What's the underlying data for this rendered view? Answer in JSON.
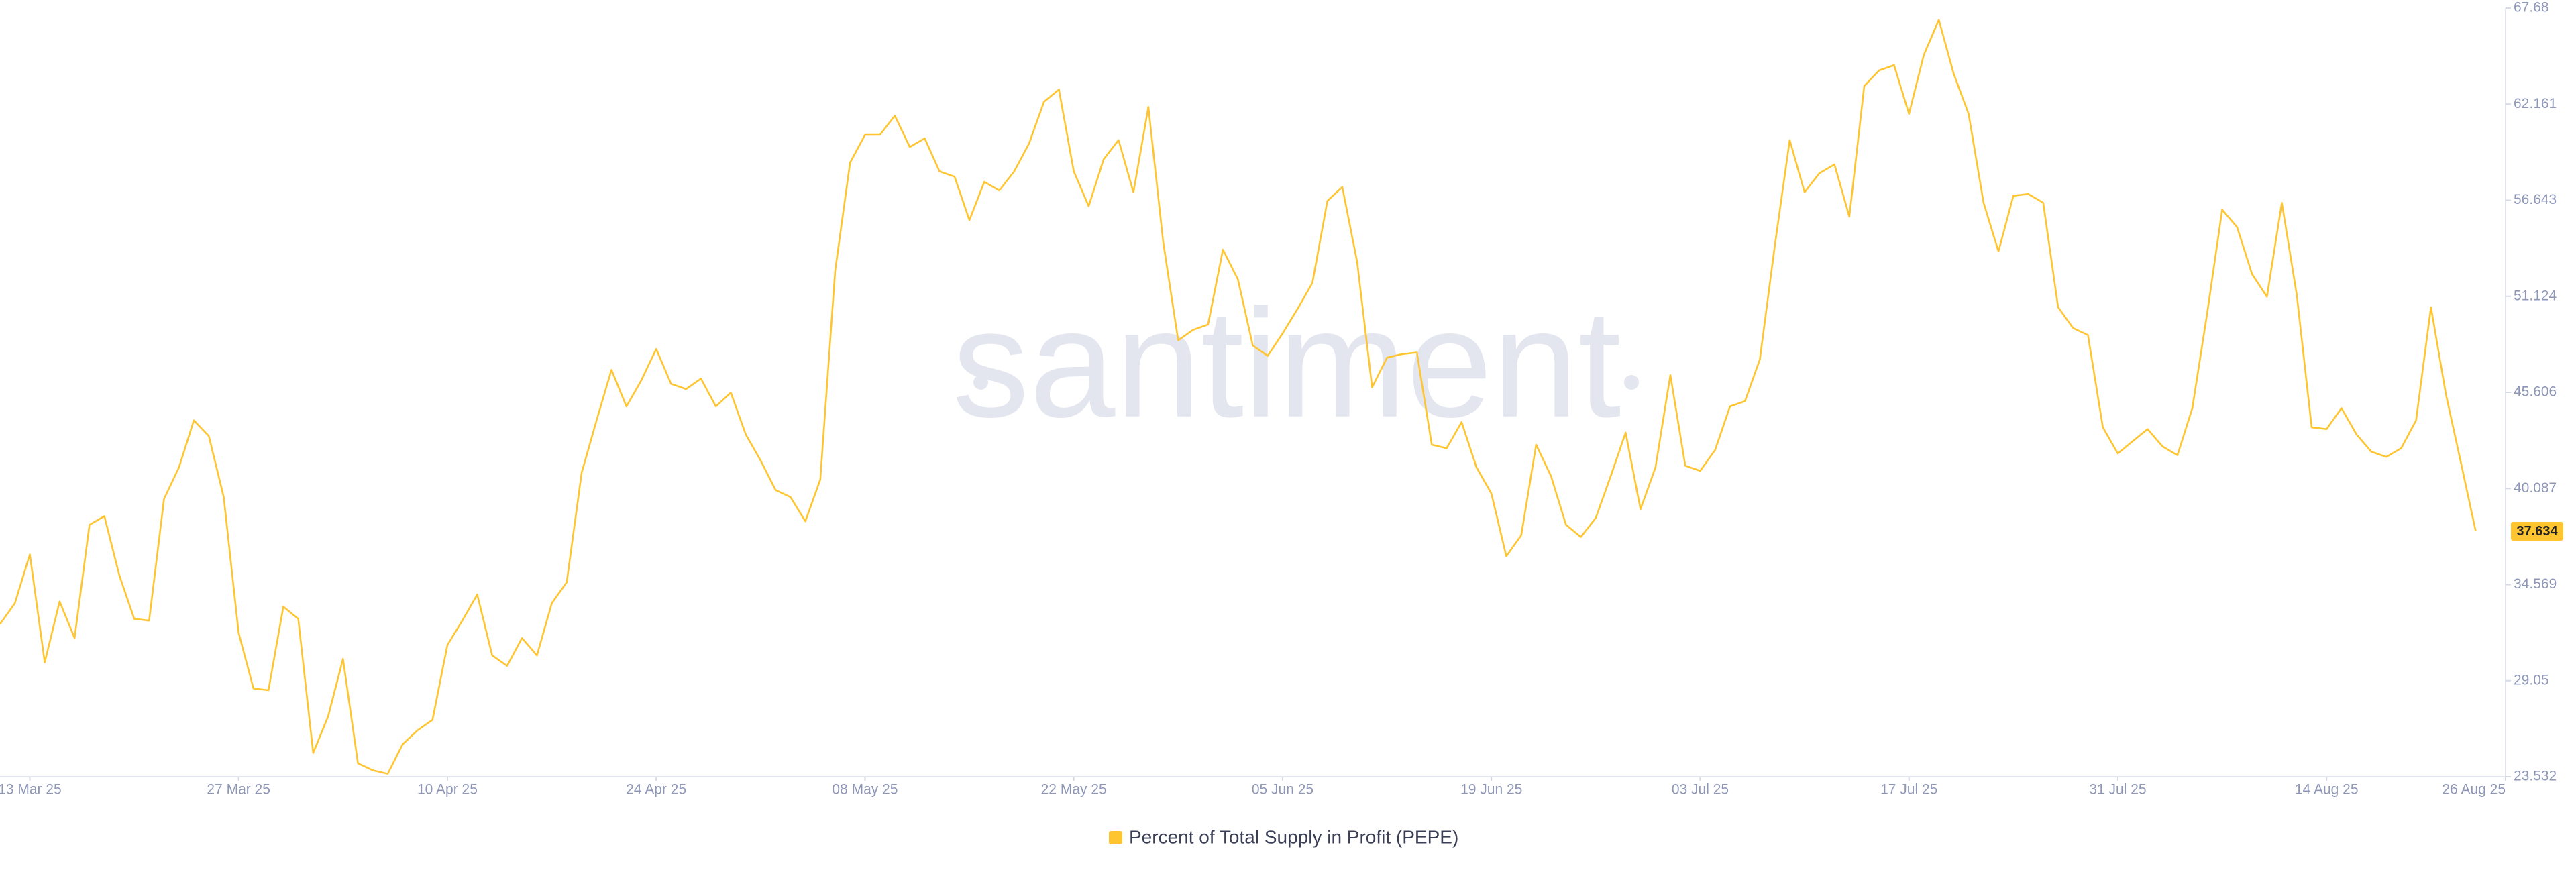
{
  "chart_data": {
    "type": "line",
    "watermark": "santiment",
    "x": [
      "2025-03-11",
      "2025-03-12",
      "2025-03-13",
      "2025-03-14",
      "2025-03-15",
      "2025-03-16",
      "2025-03-17",
      "2025-03-18",
      "2025-03-19",
      "2025-03-20",
      "2025-03-21",
      "2025-03-22",
      "2025-03-23",
      "2025-03-24",
      "2025-03-25",
      "2025-03-26",
      "2025-03-27",
      "2025-03-28",
      "2025-03-29",
      "2025-03-30",
      "2025-03-31",
      "2025-04-01",
      "2025-04-02",
      "2025-04-03",
      "2025-04-04",
      "2025-04-05",
      "2025-04-06",
      "2025-04-07",
      "2025-04-08",
      "2025-04-09",
      "2025-04-10",
      "2025-04-11",
      "2025-04-12",
      "2025-04-13",
      "2025-04-14",
      "2025-04-15",
      "2025-04-16",
      "2025-04-17",
      "2025-04-18",
      "2025-04-19",
      "2025-04-20",
      "2025-04-21",
      "2025-04-22",
      "2025-04-23",
      "2025-04-24",
      "2025-04-25",
      "2025-04-26",
      "2025-04-27",
      "2025-04-28",
      "2025-04-29",
      "2025-04-30",
      "2025-05-01",
      "2025-05-02",
      "2025-05-03",
      "2025-05-04",
      "2025-05-05",
      "2025-05-06",
      "2025-05-07",
      "2025-05-08",
      "2025-05-09",
      "2025-05-10",
      "2025-05-11",
      "2025-05-12",
      "2025-05-13",
      "2025-05-14",
      "2025-05-15",
      "2025-05-16",
      "2025-05-17",
      "2025-05-18",
      "2025-05-19",
      "2025-05-20",
      "2025-05-21",
      "2025-05-22",
      "2025-05-23",
      "2025-05-24",
      "2025-05-25",
      "2025-05-26",
      "2025-05-27",
      "2025-05-28",
      "2025-05-29",
      "2025-05-30",
      "2025-05-31",
      "2025-06-01",
      "2025-06-02",
      "2025-06-03",
      "2025-06-04",
      "2025-06-05",
      "2025-06-06",
      "2025-06-07",
      "2025-06-08",
      "2025-06-09",
      "2025-06-10",
      "2025-06-11",
      "2025-06-12",
      "2025-06-13",
      "2025-06-14",
      "2025-06-15",
      "2025-06-16",
      "2025-06-17",
      "2025-06-18",
      "2025-06-19",
      "2025-06-20",
      "2025-06-21",
      "2025-06-22",
      "2025-06-23",
      "2025-06-24",
      "2025-06-25",
      "2025-06-26",
      "2025-06-27",
      "2025-06-28",
      "2025-06-29",
      "2025-06-30",
      "2025-07-01",
      "2025-07-02",
      "2025-07-03",
      "2025-07-04",
      "2025-07-05",
      "2025-07-06",
      "2025-07-07",
      "2025-07-08",
      "2025-07-09",
      "2025-07-10",
      "2025-07-11",
      "2025-07-12",
      "2025-07-13",
      "2025-07-14",
      "2025-07-15",
      "2025-07-16",
      "2025-07-17",
      "2025-07-18",
      "2025-07-19",
      "2025-07-20",
      "2025-07-21",
      "2025-07-22",
      "2025-07-23",
      "2025-07-24",
      "2025-07-25",
      "2025-07-26",
      "2025-07-27",
      "2025-07-28",
      "2025-07-29",
      "2025-07-30",
      "2025-07-31",
      "2025-08-01",
      "2025-08-02",
      "2025-08-03",
      "2025-08-04",
      "2025-08-05",
      "2025-08-06",
      "2025-08-07",
      "2025-08-08",
      "2025-08-09",
      "2025-08-10",
      "2025-08-11",
      "2025-08-12",
      "2025-08-13",
      "2025-08-14",
      "2025-08-15",
      "2025-08-16",
      "2025-08-17",
      "2025-08-18",
      "2025-08-19",
      "2025-08-20",
      "2025-08-21",
      "2025-08-22",
      "2025-08-23",
      "2025-08-24"
    ],
    "series": [
      {
        "name": "Percent of Total Supply in Profit (PEPE)",
        "color": "#ffc530",
        "values": [
          32.3,
          33.5,
          36.3,
          30.1,
          33.6,
          31.5,
          38.0,
          38.5,
          35.1,
          32.6,
          32.5,
          39.5,
          41.3,
          44.0,
          43.1,
          39.6,
          31.8,
          28.6,
          28.5,
          33.3,
          32.6,
          24.9,
          27.0,
          30.3,
          24.3,
          23.9,
          23.7,
          25.4,
          26.2,
          26.8,
          31.1,
          32.5,
          34.0,
          30.5,
          29.9,
          31.5,
          30.5,
          33.5,
          34.7,
          41.0,
          44.0,
          46.9,
          44.8,
          46.3,
          48.1,
          46.1,
          45.8,
          46.4,
          44.8,
          45.6,
          43.2,
          41.7,
          40.0,
          39.6,
          38.2,
          40.6,
          52.6,
          58.8,
          60.4,
          60.4,
          61.5,
          59.7,
          60.2,
          58.3,
          58.0,
          55.5,
          57.7,
          57.2,
          58.3,
          59.9,
          62.3,
          63.0,
          58.3,
          56.3,
          59.0,
          60.1,
          57.1,
          62.0,
          54.2,
          48.6,
          49.2,
          49.5,
          53.8,
          52.1,
          48.3,
          47.7,
          49.0,
          50.4,
          51.9,
          56.6,
          57.4,
          53.1,
          45.9,
          47.6,
          47.8,
          47.9,
          42.6,
          42.4,
          43.9,
          41.3,
          39.8,
          36.2,
          37.4,
          42.6,
          40.8,
          38.0,
          37.3,
          38.4,
          40.8,
          43.3,
          38.9,
          41.3,
          46.6,
          41.4,
          41.1,
          42.3,
          44.8,
          45.1,
          47.5,
          54.0,
          60.1,
          57.1,
          58.2,
          58.7,
          55.7,
          63.2,
          64.1,
          64.4,
          61.6,
          65.0,
          67.0,
          63.9,
          61.6,
          56.5,
          53.7,
          56.9,
          57.0,
          56.5,
          50.5,
          49.3,
          48.9,
          43.6,
          42.1,
          42.8,
          43.5,
          42.5,
          42.0,
          44.7,
          50.2,
          56.1,
          55.1,
          52.4,
          51.1,
          56.5,
          51.2,
          43.6,
          43.5,
          44.7,
          43.2,
          42.2,
          41.9,
          42.4,
          44.0,
          50.5,
          45.5,
          41.6,
          37.634
        ]
      }
    ],
    "xlim": [
      "2025-03-11",
      "2025-08-26"
    ],
    "xticks": [
      {
        "value": "2025-03-13",
        "label": "13 Mar 25"
      },
      {
        "value": "2025-03-27",
        "label": "27 Mar 25"
      },
      {
        "value": "2025-04-10",
        "label": "10 Apr 25"
      },
      {
        "value": "2025-04-24",
        "label": "24 Apr 25"
      },
      {
        "value": "2025-05-08",
        "label": "08 May 25"
      },
      {
        "value": "2025-05-22",
        "label": "22 May 25"
      },
      {
        "value": "2025-06-05",
        "label": "05 Jun 25"
      },
      {
        "value": "2025-06-19",
        "label": "19 Jun 25"
      },
      {
        "value": "2025-07-03",
        "label": "03 Jul 25"
      },
      {
        "value": "2025-07-17",
        "label": "17 Jul 25"
      },
      {
        "value": "2025-07-31",
        "label": "31 Jul 25"
      },
      {
        "value": "2025-08-14",
        "label": "14 Aug 25"
      },
      {
        "value": "2025-08-26",
        "label": "26 Aug 25"
      }
    ],
    "ylim": [
      23.532,
      67.68
    ],
    "yticks": [
      23.532,
      {
        "value": 29.05,
        "label": "29.05"
      },
      34.569,
      40.087,
      45.606,
      51.124,
      56.643,
      62.161,
      67.68
    ],
    "axis_side": "right"
  }
}
